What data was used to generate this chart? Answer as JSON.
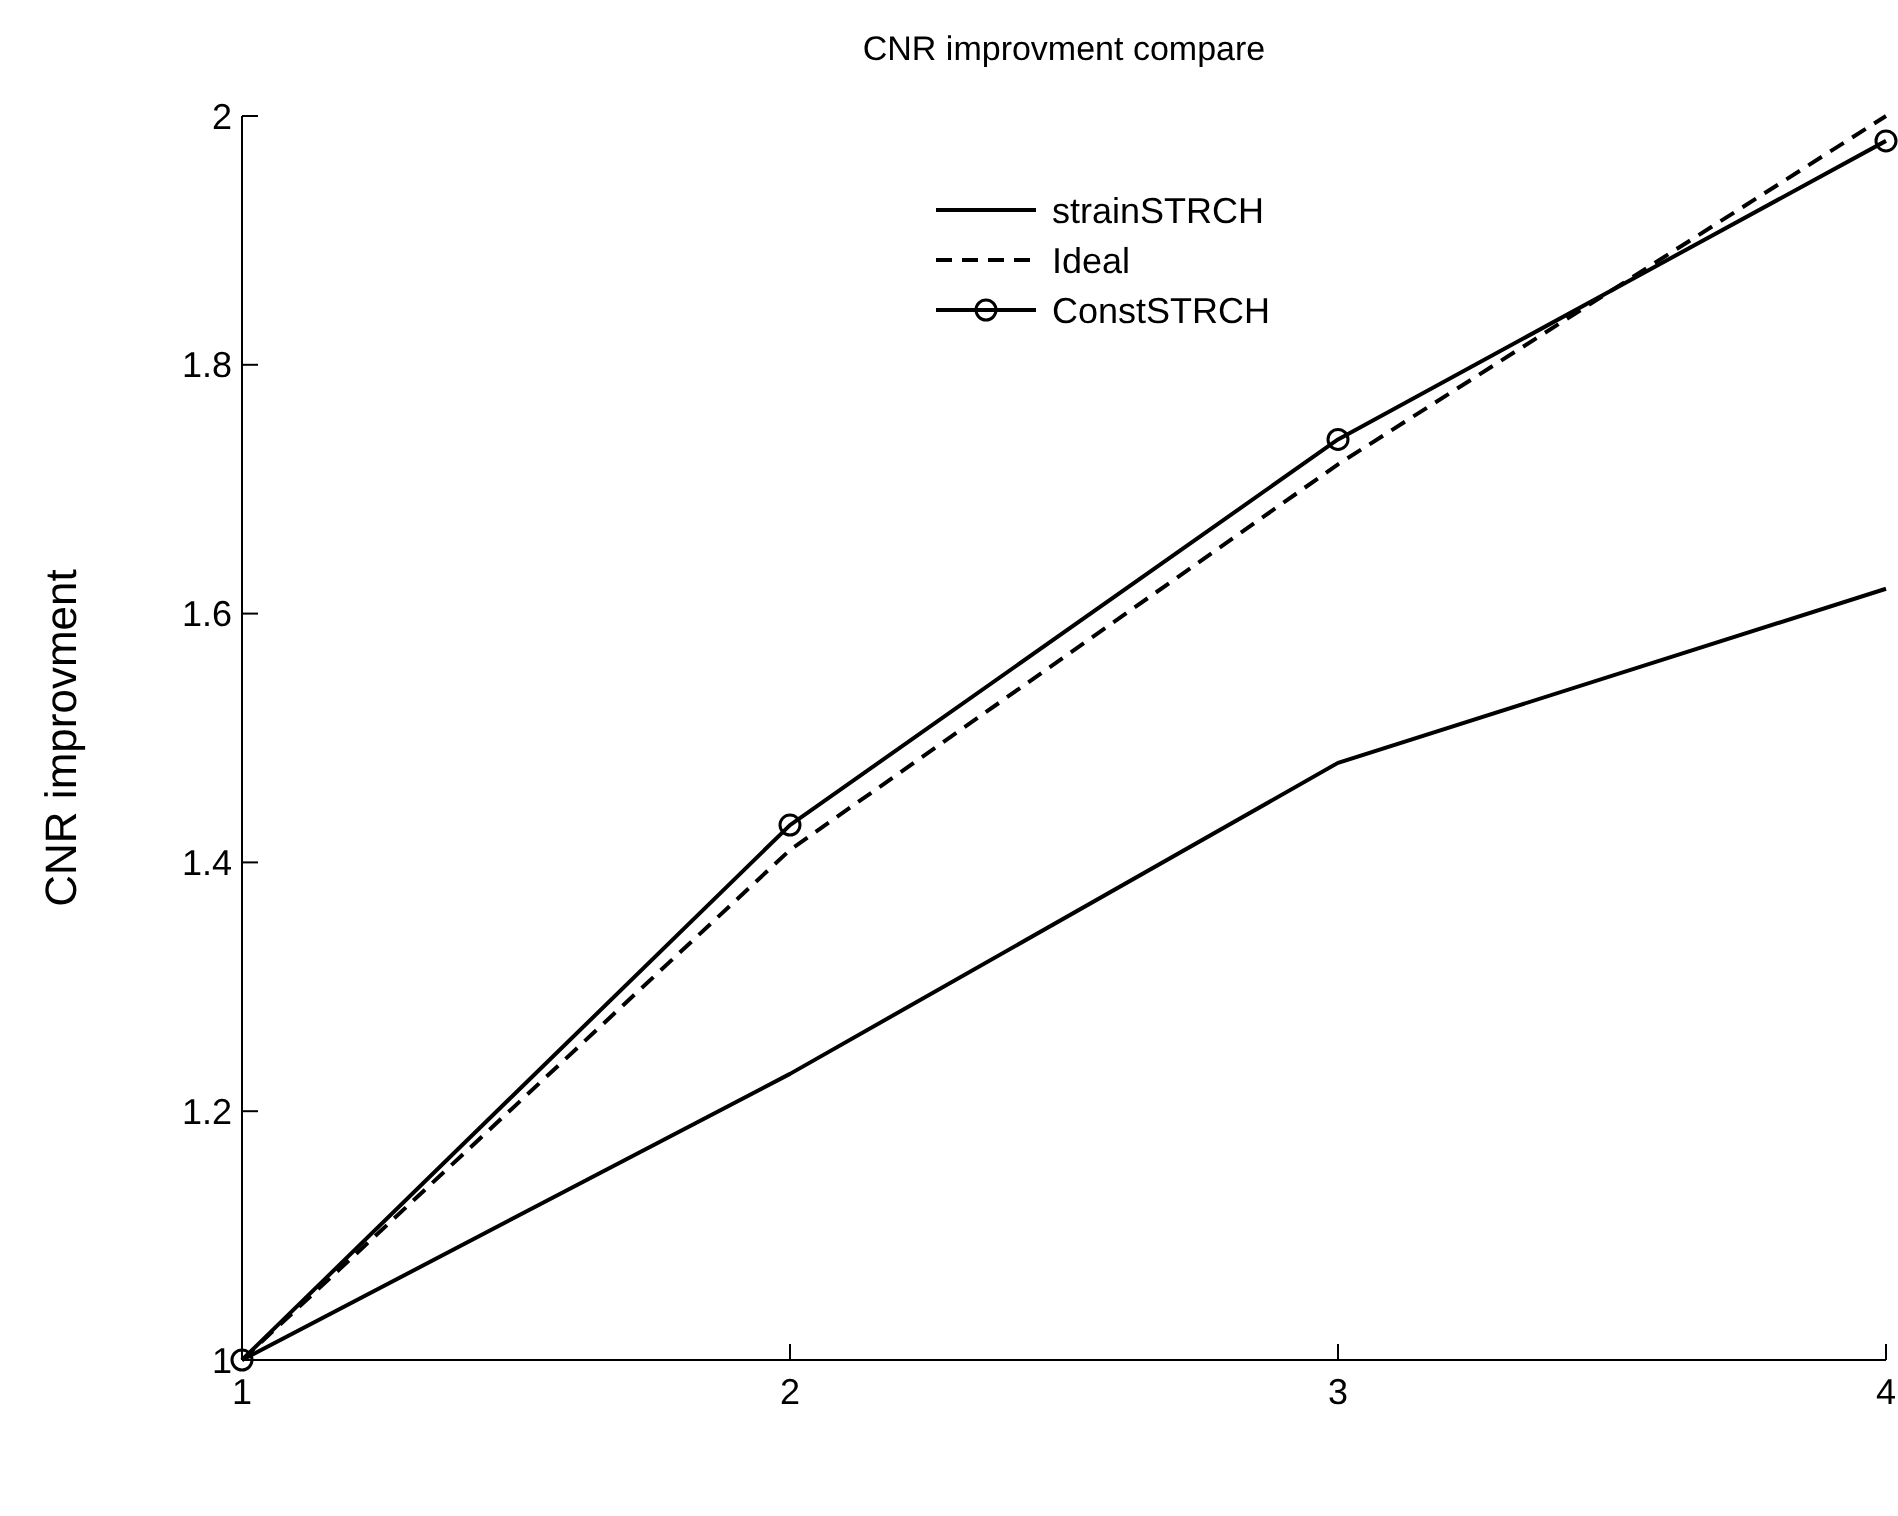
{
  "chart_data": {
    "type": "line",
    "title": "CNR improvment compare",
    "ylabel": "CNR improvment",
    "x": [
      1,
      2,
      3,
      4
    ],
    "xlim": [
      1,
      4
    ],
    "xticks": [
      1,
      2,
      3,
      4
    ],
    "ylim": [
      1,
      2
    ],
    "yticks": [
      1,
      1.2,
      1.4,
      1.6,
      1.8,
      2
    ],
    "grid": false,
    "legend": "top right",
    "series": [
      {
        "name": "strainSTRCH",
        "color": "#000000",
        "values": [
          1,
          1.23,
          1.48,
          1.62
        ],
        "line_style": "solid",
        "marker": "none"
      },
      {
        "name": "Ideal",
        "color": "#000000",
        "values": [
          1,
          1.41,
          1.72,
          2
        ],
        "line_style": "dashed",
        "marker": "none"
      },
      {
        "name": "ConstSTRCH",
        "color": "#000000",
        "values": [
          1,
          1.43,
          1.74,
          1.98
        ],
        "line_style": "solid",
        "marker": "circle"
      }
    ]
  }
}
